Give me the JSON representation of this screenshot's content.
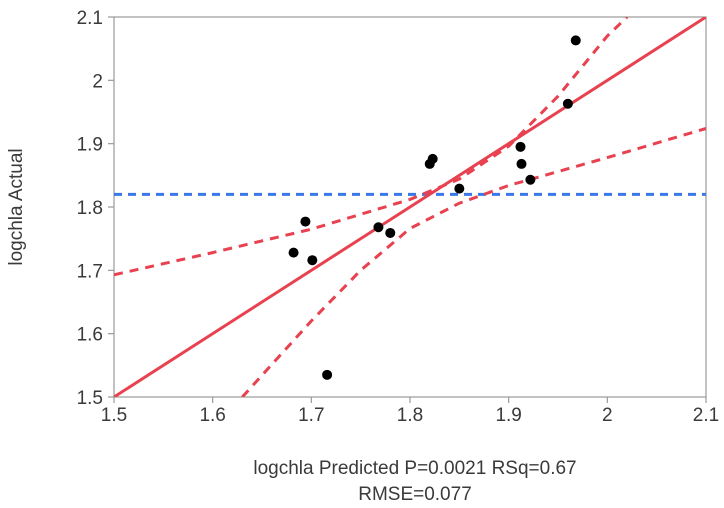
{
  "chart_data": {
    "type": "scatter",
    "xlabel_line1": "logchla Predicted P=0.0021 RSq=0.67",
    "xlabel_line2": "RMSE=0.077",
    "ylabel": "logchla Actual",
    "xlim": [
      1.5,
      2.1
    ],
    "ylim": [
      1.5,
      2.1
    ],
    "xticks": [
      "1.5",
      "1.6",
      "1.7",
      "1.8",
      "1.9",
      "2",
      "2.1"
    ],
    "yticks": [
      "1.5",
      "1.6",
      "1.7",
      "1.8",
      "1.9",
      "2",
      "2.1"
    ],
    "grid": false,
    "legend": "none",
    "points": [
      {
        "x": 1.682,
        "y": 1.728
      },
      {
        "x": 1.694,
        "y": 1.777
      },
      {
        "x": 1.701,
        "y": 1.716
      },
      {
        "x": 1.716,
        "y": 1.535
      },
      {
        "x": 1.768,
        "y": 1.768
      },
      {
        "x": 1.78,
        "y": 1.759
      },
      {
        "x": 1.82,
        "y": 1.868
      },
      {
        "x": 1.823,
        "y": 1.876
      },
      {
        "x": 1.85,
        "y": 1.829
      },
      {
        "x": 1.912,
        "y": 1.895
      },
      {
        "x": 1.913,
        "y": 1.868
      },
      {
        "x": 1.922,
        "y": 1.843
      },
      {
        "x": 1.96,
        "y": 1.963
      },
      {
        "x": 1.968,
        "y": 2.063
      }
    ],
    "fit_line": {
      "x": [
        1.5,
        2.1
      ],
      "y": [
        1.5,
        2.1
      ]
    },
    "mean_line_y": 1.82,
    "confidence_upper": [
      {
        "x": 1.5,
        "y": 1.693
      },
      {
        "x": 1.6,
        "y": 1.728
      },
      {
        "x": 1.7,
        "y": 1.765
      },
      {
        "x": 1.8,
        "y": 1.812
      },
      {
        "x": 1.85,
        "y": 1.844
      },
      {
        "x": 1.9,
        "y": 1.896
      },
      {
        "x": 1.95,
        "y": 1.975
      },
      {
        "x": 2.0,
        "y": 2.07
      },
      {
        "x": 2.02,
        "y": 2.1
      }
    ],
    "confidence_lower": [
      {
        "x": 1.63,
        "y": 1.5
      },
      {
        "x": 1.7,
        "y": 1.62
      },
      {
        "x": 1.75,
        "y": 1.7
      },
      {
        "x": 1.8,
        "y": 1.766
      },
      {
        "x": 1.85,
        "y": 1.806
      },
      {
        "x": 1.9,
        "y": 1.834
      },
      {
        "x": 2.0,
        "y": 1.878
      },
      {
        "x": 2.1,
        "y": 1.924
      }
    ],
    "colors": {
      "points": "#000000",
      "fit": "#e8414f",
      "confidence": "#e8414f",
      "mean": "#3b78e7",
      "frame": "#9a9a9a"
    }
  }
}
